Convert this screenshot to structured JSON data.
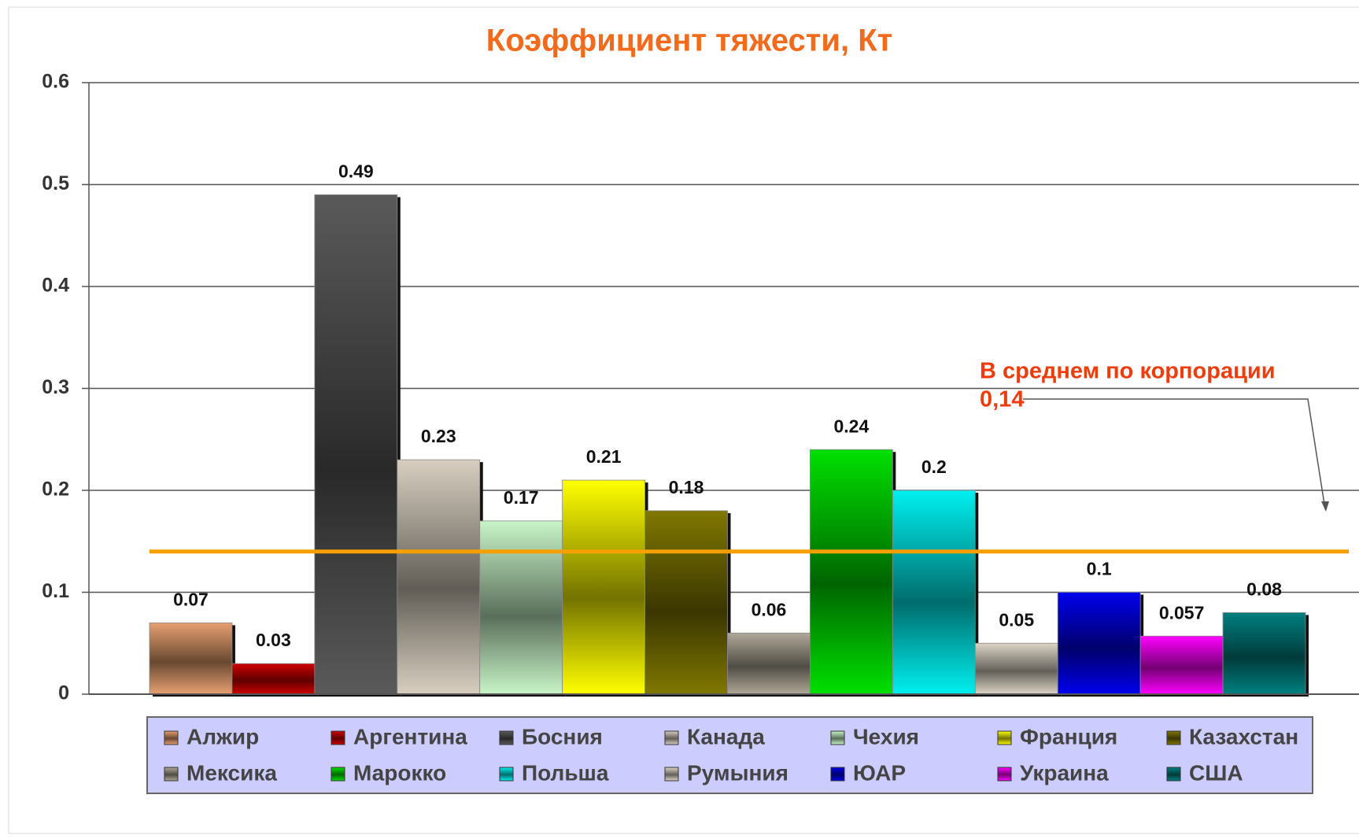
{
  "chart_data": {
    "type": "bar",
    "title": "Коэффициент тяжести, Кт",
    "categories": [
      null
    ],
    "series": [
      {
        "name": "Алжир",
        "color": "#e8a070",
        "values": [
          0.07
        ]
      },
      {
        "name": "Аргентина",
        "color": "#d00000",
        "values": [
          0.03
        ]
      },
      {
        "name": "Босния",
        "color": "#5a5a5a",
        "values": [
          0.49
        ]
      },
      {
        "name": "Канада",
        "color": "#d8cfc0",
        "values": [
          0.23
        ]
      },
      {
        "name": "Чехия",
        "color": "#c8f5c8",
        "values": [
          0.17
        ]
      },
      {
        "name": "Франция",
        "color": "#ffff00",
        "values": [
          0.21
        ]
      },
      {
        "name": "Казахстан",
        "color": "#807800",
        "values": [
          0.18
        ]
      },
      {
        "name": "Мексика",
        "color": "#b0a898",
        "values": [
          0.06
        ]
      },
      {
        "name": "Марокко",
        "color": "#00e000",
        "values": [
          0.24
        ]
      },
      {
        "name": "Польша",
        "color": "#00f0f0",
        "values": [
          0.2
        ]
      },
      {
        "name": "Румыния",
        "color": "#ddd5c5",
        "values": [
          0.05
        ]
      },
      {
        "name": "ЮАР",
        "color": "#0000ee",
        "values": [
          0.1
        ]
      },
      {
        "name": "Украина",
        "color": "#ff00ff",
        "values": [
          0.057
        ]
      },
      {
        "name": "США",
        "color": "#008080",
        "values": [
          0.08
        ]
      }
    ],
    "average_line": {
      "value": 0.14,
      "color": "#f5a000"
    },
    "annotation": [
      "В среднем по корпорации",
      "0,14"
    ],
    "ylim": [
      0,
      0.6
    ],
    "yticks": [
      0,
      0.1,
      0.2,
      0.3,
      0.4,
      0.5,
      0.6
    ],
    "grid": true,
    "legend": "bottom"
  }
}
